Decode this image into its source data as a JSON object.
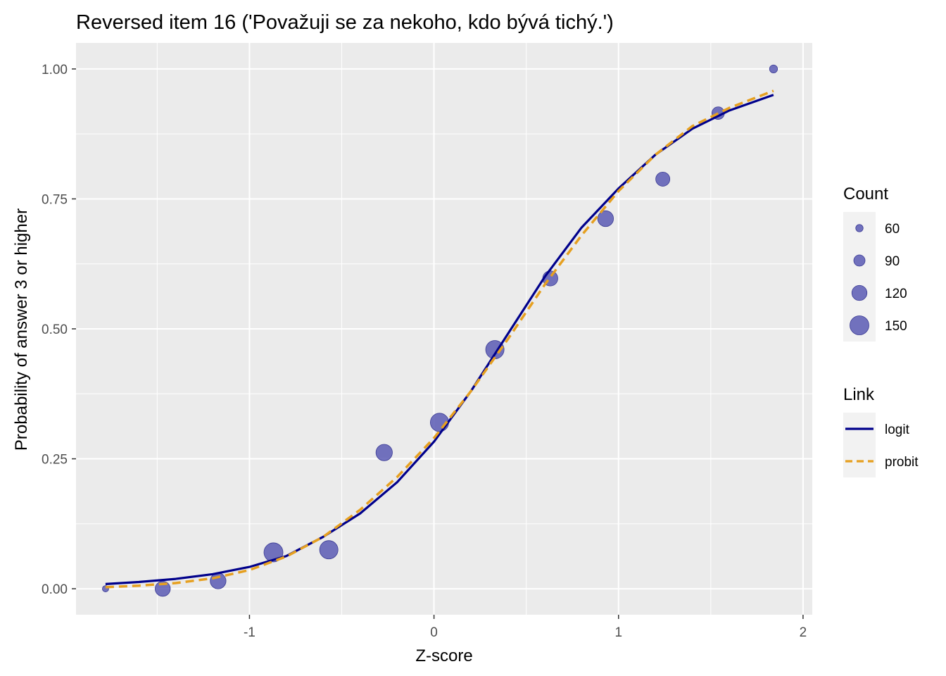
{
  "chart_data": {
    "type": "scatter",
    "title": "Reversed item 16 ('Považuji se za nekoho, kdo bývá tichý.')",
    "xlabel": "Z-score",
    "ylabel": "Probability of answer 3 or higher",
    "xlim": [
      -1.94,
      2.05
    ],
    "ylim": [
      -0.05,
      1.05
    ],
    "x_ticks": [
      -1,
      0,
      1,
      2
    ],
    "x_tick_labels": [
      "-1",
      "0",
      "1",
      "2"
    ],
    "y_ticks": [
      0,
      0.25,
      0.5,
      0.75,
      1
    ],
    "y_tick_labels": [
      "0.00",
      "0.25",
      "0.50",
      "0.75",
      "1.00"
    ],
    "grid": true,
    "points": {
      "name": "Count",
      "color": "#5b5bb4",
      "data": [
        {
          "x": -1.78,
          "y": 0.0,
          "count": 52
        },
        {
          "x": -1.47,
          "y": 0.0,
          "count": 120
        },
        {
          "x": -1.17,
          "y": 0.015,
          "count": 125
        },
        {
          "x": -0.87,
          "y": 0.07,
          "count": 150
        },
        {
          "x": -0.57,
          "y": 0.075,
          "count": 145
        },
        {
          "x": -0.27,
          "y": 0.262,
          "count": 130
        },
        {
          "x": 0.03,
          "y": 0.32,
          "count": 145
        },
        {
          "x": 0.33,
          "y": 0.46,
          "count": 145
        },
        {
          "x": 0.63,
          "y": 0.597,
          "count": 120
        },
        {
          "x": 0.93,
          "y": 0.712,
          "count": 125
        },
        {
          "x": 1.24,
          "y": 0.788,
          "count": 112
        },
        {
          "x": 1.54,
          "y": 0.915,
          "count": 100
        },
        {
          "x": 1.84,
          "y": 1.0,
          "count": 65
        }
      ]
    },
    "series": [
      {
        "name": "logit",
        "color": "#00008b",
        "dash": "solid",
        "x": [
          -1.78,
          -1.6,
          -1.4,
          -1.2,
          -1.0,
          -0.8,
          -0.6,
          -0.4,
          -0.2,
          0.0,
          0.2,
          0.4,
          0.6,
          0.8,
          1.0,
          1.2,
          1.4,
          1.6,
          1.84
        ],
        "values": [
          0.009,
          0.013,
          0.019,
          0.028,
          0.042,
          0.063,
          0.1,
          0.145,
          0.205,
          0.283,
          0.38,
          0.49,
          0.6,
          0.695,
          0.77,
          0.835,
          0.885,
          0.92,
          0.95
        ]
      },
      {
        "name": "probit",
        "color": "#e6a020",
        "dash": "dashed",
        "x": [
          -1.78,
          -1.6,
          -1.4,
          -1.2,
          -1.0,
          -0.8,
          -0.6,
          -0.4,
          -0.2,
          0.0,
          0.2,
          0.4,
          0.6,
          0.8,
          1.0,
          1.2,
          1.4,
          1.6,
          1.84
        ],
        "values": [
          0.003,
          0.006,
          0.011,
          0.02,
          0.036,
          0.062,
          0.1,
          0.152,
          0.215,
          0.29,
          0.38,
          0.48,
          0.585,
          0.68,
          0.765,
          0.835,
          0.89,
          0.925,
          0.958
        ]
      }
    ],
    "legend": {
      "count_title": "Count",
      "count_items": [
        {
          "label": "60",
          "value": 60
        },
        {
          "label": "90",
          "value": 90
        },
        {
          "label": "120",
          "value": 120
        },
        {
          "label": "150",
          "value": 150
        }
      ],
      "link_title": "Link",
      "link_items": [
        {
          "label": "logit",
          "color": "#00008b",
          "dash": "solid"
        },
        {
          "label": "probit",
          "color": "#e6a020",
          "dash": "dashed"
        }
      ],
      "placement": "right"
    },
    "colors": {
      "panel_background": "#ebebeb",
      "grid": "#ffffff",
      "legend_key_background": "#f2f2f2"
    }
  }
}
